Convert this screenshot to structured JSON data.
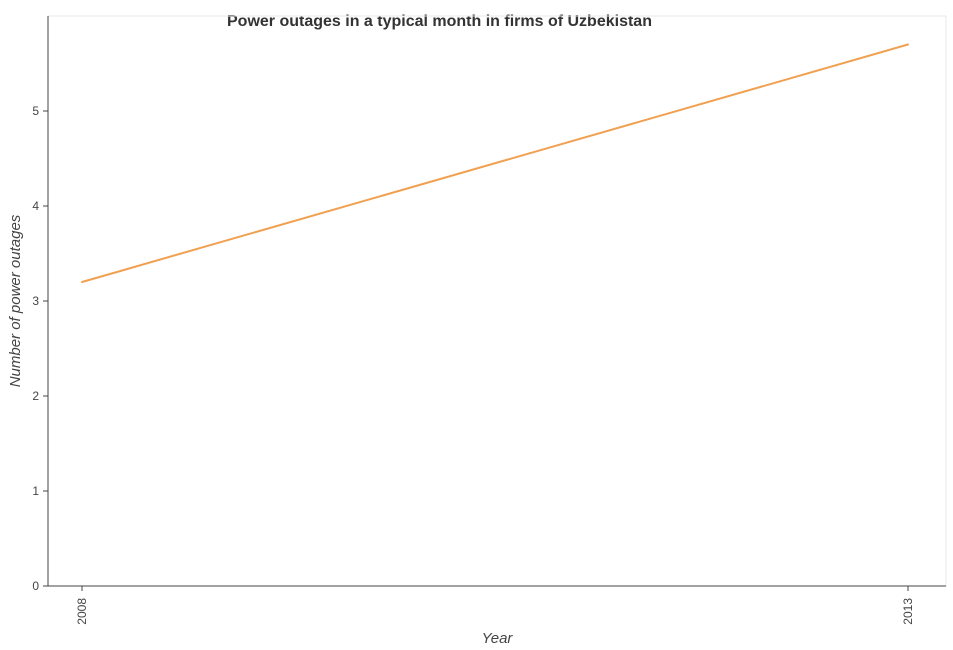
{
  "chart_data": {
    "type": "line",
    "title": "Power outages in a typical month in firms of Uzbekistan",
    "xlabel": "Year",
    "ylabel": "Number of power outages",
    "categories": [
      "2008",
      "2013"
    ],
    "series": [
      {
        "values": [
          3.2,
          5.7
        ]
      }
    ],
    "ylim": [
      0,
      6
    ],
    "yticks": [
      "0",
      "1",
      "2",
      "3",
      "4",
      "5"
    ],
    "grid": false,
    "legend": "none",
    "line_color": "#f0a050"
  }
}
